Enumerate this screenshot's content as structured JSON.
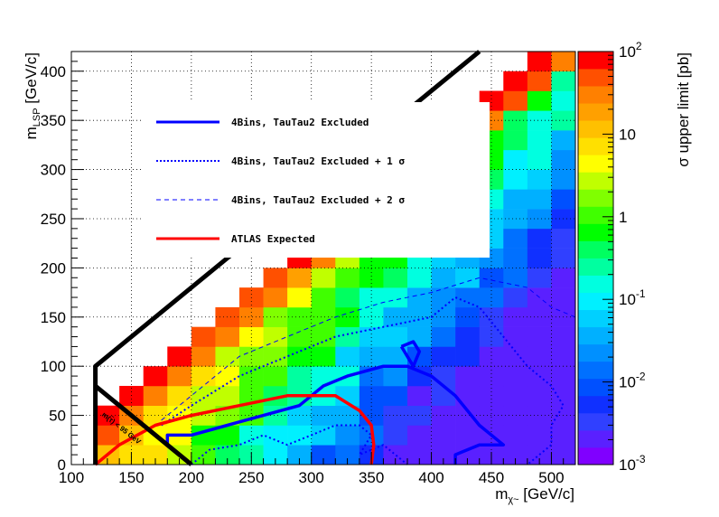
{
  "chart_data": {
    "type": "heatmap",
    "title": "",
    "xlabel": "m",
    "xlabel_sub": "χ~",
    "xlabel_unit": " [GeV/c]",
    "ylabel": "m",
    "ylabel_sub": "LSP",
    "ylabel_unit": " [GeV/c]",
    "colorbar_label": "σ upper limit [pb]",
    "xlim": [
      100,
      520
    ],
    "ylim": [
      0,
      420
    ],
    "zlim": [
      0.001,
      100
    ],
    "z_scale": "log",
    "bin_size": 20,
    "x_ticks": [
      {
        "value": 100,
        "label": "100"
      },
      {
        "value": 150,
        "label": "150"
      },
      {
        "value": 200,
        "label": "200"
      },
      {
        "value": 250,
        "label": "250"
      },
      {
        "value": 300,
        "label": "300"
      },
      {
        "value": 350,
        "label": "350"
      },
      {
        "value": 400,
        "label": "400"
      },
      {
        "value": 450,
        "label": "450"
      },
      {
        "value": 500,
        "label": "500"
      }
    ],
    "y_ticks": [
      {
        "value": 0,
        "label": "0"
      },
      {
        "value": 50,
        "label": "50"
      },
      {
        "value": 100,
        "label": "100"
      },
      {
        "value": 150,
        "label": "150"
      },
      {
        "value": 200,
        "label": "200"
      },
      {
        "value": 250,
        "label": "250"
      },
      {
        "value": 300,
        "label": "300"
      },
      {
        "value": 350,
        "label": "350"
      },
      {
        "value": 400,
        "label": "400"
      }
    ],
    "z_ticks": [
      {
        "value": 0.001,
        "base": "10",
        "exp": "-3"
      },
      {
        "value": 0.01,
        "base": "10",
        "exp": "-2"
      },
      {
        "value": 0.1,
        "base": "10",
        "exp": "-1"
      },
      {
        "value": 1,
        "base": "1",
        "exp": ""
      },
      {
        "value": 10,
        "base": "10",
        "exp": ""
      },
      {
        "value": 100,
        "base": "10",
        "exp": "2"
      }
    ],
    "legend": {
      "placement": "upper-center",
      "entries": [
        {
          "label": "4Bins, TauTau2 Excluded",
          "color": "#0000ff",
          "style": "solid"
        },
        {
          "label": "4Bins, TauTau2 Excluded + 1  σ",
          "color": "#0000ff",
          "style": "dotted"
        },
        {
          "label": "4Bins, TauTau2 Excluded + 2  σ",
          "color": "#0000ff",
          "style": "dashed"
        },
        {
          "label": "ATLAS Expected",
          "color": "#ff0000",
          "style": "solid"
        }
      ]
    },
    "annotation": "m(τ̃) < 95 GeV",
    "kinematic_line": [
      [
        120,
        0
      ],
      [
        120,
        100
      ],
      [
        440,
        420
      ]
    ],
    "kinematic_line_lower": [
      [
        120,
        80
      ],
      [
        200,
        0
      ]
    ],
    "contours": {
      "excluded": [
        [
          180,
          20
        ],
        [
          180,
          30
        ],
        [
          200,
          30
        ],
        [
          230,
          40
        ],
        [
          260,
          50
        ],
        [
          290,
          60
        ],
        [
          310,
          80
        ],
        [
          330,
          90
        ],
        [
          360,
          100
        ],
        [
          380,
          100
        ],
        [
          400,
          90
        ],
        [
          420,
          70
        ],
        [
          440,
          40
        ],
        [
          460,
          20
        ],
        [
          440,
          20
        ],
        [
          420,
          10
        ],
        [
          420,
          0
        ]
      ],
      "excluded_island": [
        [
          375,
          120
        ],
        [
          385,
          125
        ],
        [
          390,
          115
        ],
        [
          385,
          100
        ],
        [
          380,
          110
        ],
        [
          375,
          120
        ]
      ],
      "plus1sigma": [
        [
          175,
          40
        ],
        [
          200,
          60
        ],
        [
          240,
          90
        ],
        [
          280,
          110
        ],
        [
          320,
          130
        ],
        [
          360,
          140
        ],
        [
          400,
          150
        ],
        [
          420,
          170
        ],
        [
          440,
          160
        ],
        [
          460,
          130
        ],
        [
          480,
          100
        ],
        [
          500,
          80
        ],
        [
          510,
          60
        ],
        [
          500,
          40
        ],
        [
          500,
          20
        ],
        [
          480,
          0
        ]
      ],
      "plus1sigma_lower": [
        [
          200,
          0
        ],
        [
          215,
          15
        ],
        [
          240,
          20
        ],
        [
          260,
          30
        ],
        [
          280,
          20
        ],
        [
          300,
          30
        ],
        [
          320,
          40
        ],
        [
          340,
          40
        ],
        [
          350,
          30
        ],
        [
          340,
          10
        ],
        [
          360,
          20
        ],
        [
          380,
          0
        ]
      ],
      "plus2sigma": [
        [
          175,
          45
        ],
        [
          200,
          70
        ],
        [
          240,
          110
        ],
        [
          280,
          130
        ],
        [
          320,
          150
        ],
        [
          360,
          165
        ],
        [
          400,
          175
        ],
        [
          440,
          190
        ],
        [
          480,
          180
        ],
        [
          500,
          160
        ],
        [
          520,
          150
        ]
      ],
      "atlas_expected": [
        [
          120,
          0
        ],
        [
          140,
          20
        ],
        [
          170,
          40
        ],
        [
          200,
          50
        ],
        [
          240,
          60
        ],
        [
          280,
          70
        ],
        [
          320,
          70
        ],
        [
          340,
          55
        ],
        [
          350,
          40
        ],
        [
          352,
          20
        ],
        [
          350,
          0
        ]
      ]
    },
    "grid": true
  }
}
